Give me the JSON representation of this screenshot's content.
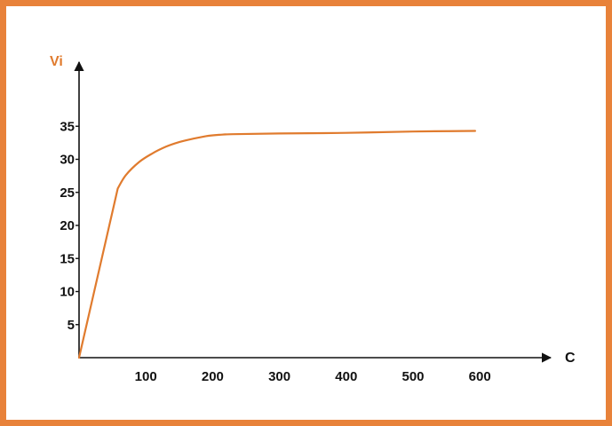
{
  "chart_data": {
    "type": "line",
    "xlabel": "C",
    "ylabel": "Vi",
    "xlim": [
      0,
      700
    ],
    "ylim": [
      0,
      40
    ],
    "xticks": [
      100,
      200,
      300,
      400,
      500,
      600
    ],
    "yticks": [
      5,
      10,
      15,
      20,
      25,
      30,
      35
    ],
    "grid": false,
    "series": [
      {
        "x": [
          0,
          58,
          70,
          90,
          110,
          130,
          150,
          170,
          190,
          210,
          230,
          300,
          400,
          500,
          593
        ],
        "y": [
          0,
          25.6,
          27.6,
          29.6,
          30.9,
          31.9,
          32.6,
          33.1,
          33.5,
          33.7,
          33.8,
          33.9,
          34.0,
          34.2,
          34.3
        ]
      }
    ],
    "colors": {
      "line": "#e07b2e",
      "ylabel": "#e07b2e",
      "xlabel": "#111111",
      "axis": "#111111",
      "frame": "#e8823a"
    }
  }
}
